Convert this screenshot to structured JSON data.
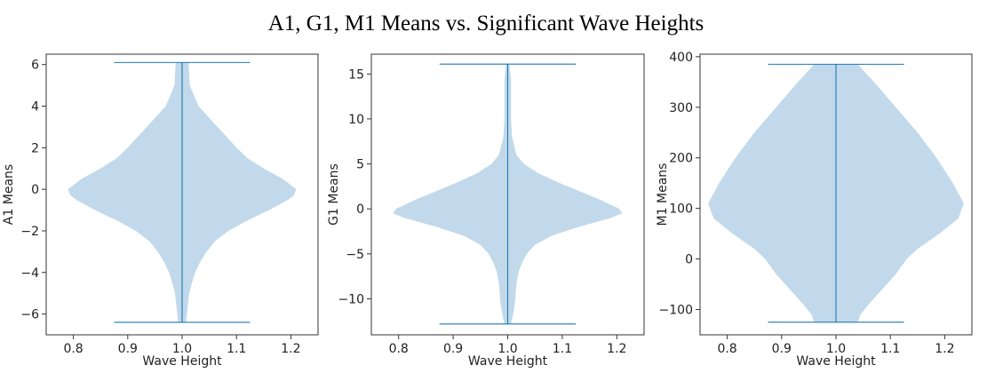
{
  "figure_title": "A1, G1, M1 Means vs. Significant Wave Heights",
  "colors": {
    "violin_fill": "#1f77b4",
    "violin_fill_opacity": 0.28,
    "line": "#1f77b4",
    "axes": "#333333"
  },
  "chart_data": [
    {
      "type": "violin",
      "xlabel": "Wave Height",
      "ylabel": "A1 Means",
      "xlim": [
        0.75,
        1.25
      ],
      "ylim": [
        -7.0,
        6.5
      ],
      "xticks": [
        "0.8",
        "0.9",
        "1.0",
        "1.1",
        "1.2"
      ],
      "yticks": [
        "−6",
        "−4",
        "−2",
        "0",
        "2",
        "4",
        "6"
      ],
      "position": 1.0,
      "whisker_halfwidth": 0.125,
      "min": -6.4,
      "max": 6.1,
      "density_profile": [
        [
          6.1,
          0.012
        ],
        [
          5.0,
          0.014
        ],
        [
          4.0,
          0.03
        ],
        [
          3.0,
          0.065
        ],
        [
          2.0,
          0.1
        ],
        [
          1.5,
          0.12
        ],
        [
          1.0,
          0.15
        ],
        [
          0.5,
          0.185
        ],
        [
          0.0,
          0.21
        ],
        [
          -0.3,
          0.205
        ],
        [
          -0.5,
          0.195
        ],
        [
          -1.0,
          0.16
        ],
        [
          -1.5,
          0.12
        ],
        [
          -2.0,
          0.085
        ],
        [
          -2.5,
          0.06
        ],
        [
          -3.0,
          0.045
        ],
        [
          -3.5,
          0.033
        ],
        [
          -4.0,
          0.024
        ],
        [
          -4.5,
          0.018
        ],
        [
          -5.0,
          0.013
        ],
        [
          -5.5,
          0.011
        ],
        [
          -6.0,
          0.009
        ],
        [
          -6.4,
          0.007
        ]
      ]
    },
    {
      "type": "violin",
      "xlabel": "Wave Height",
      "ylabel": "G1 Means",
      "xlim": [
        0.75,
        1.25
      ],
      "ylim": [
        -14.0,
        17.2
      ],
      "xticks": [
        "0.8",
        "0.9",
        "1.0",
        "1.1",
        "1.2"
      ],
      "yticks": [
        "−10",
        "−5",
        "0",
        "5",
        "10",
        "15"
      ],
      "position": 1.0,
      "whisker_halfwidth": 0.125,
      "min": -12.8,
      "max": 16.1,
      "density_profile": [
        [
          16.1,
          0.003
        ],
        [
          15.0,
          0.005
        ],
        [
          14.0,
          0.006
        ],
        [
          12.0,
          0.006
        ],
        [
          10.0,
          0.006
        ],
        [
          8.0,
          0.008
        ],
        [
          6.0,
          0.016
        ],
        [
          5.0,
          0.03
        ],
        [
          4.0,
          0.055
        ],
        [
          3.0,
          0.09
        ],
        [
          2.0,
          0.13
        ],
        [
          1.0,
          0.17
        ],
        [
          0.0,
          0.205
        ],
        [
          -0.5,
          0.21
        ],
        [
          -1.0,
          0.19
        ],
        [
          -2.0,
          0.13
        ],
        [
          -3.0,
          0.08
        ],
        [
          -4.0,
          0.05
        ],
        [
          -5.0,
          0.035
        ],
        [
          -6.0,
          0.026
        ],
        [
          -7.0,
          0.02
        ],
        [
          -8.0,
          0.017
        ],
        [
          -9.0,
          0.015
        ],
        [
          -10.0,
          0.014
        ],
        [
          -11.0,
          0.012
        ],
        [
          -12.0,
          0.009
        ],
        [
          -12.8,
          0.006
        ]
      ]
    },
    {
      "type": "violin",
      "xlabel": "Wave Height",
      "ylabel": "M1 Means",
      "xlim": [
        0.75,
        1.25
      ],
      "ylim": [
        -150,
        405
      ],
      "xticks": [
        "0.8",
        "0.9",
        "1.0",
        "1.1",
        "1.2"
      ],
      "yticks": [
        "−100",
        "0",
        "100",
        "200",
        "300",
        "400"
      ],
      "position": 1.0,
      "whisker_halfwidth": 0.125,
      "min": -125,
      "max": 385,
      "density_profile": [
        [
          385,
          0.04
        ],
        [
          350,
          0.07
        ],
        [
          300,
          0.11
        ],
        [
          250,
          0.15
        ],
        [
          200,
          0.185
        ],
        [
          150,
          0.215
        ],
        [
          110,
          0.235
        ],
        [
          80,
          0.225
        ],
        [
          50,
          0.19
        ],
        [
          20,
          0.15
        ],
        [
          0,
          0.13
        ],
        [
          -30,
          0.11
        ],
        [
          -60,
          0.085
        ],
        [
          -90,
          0.06
        ],
        [
          -110,
          0.045
        ],
        [
          -125,
          0.04
        ]
      ]
    }
  ]
}
